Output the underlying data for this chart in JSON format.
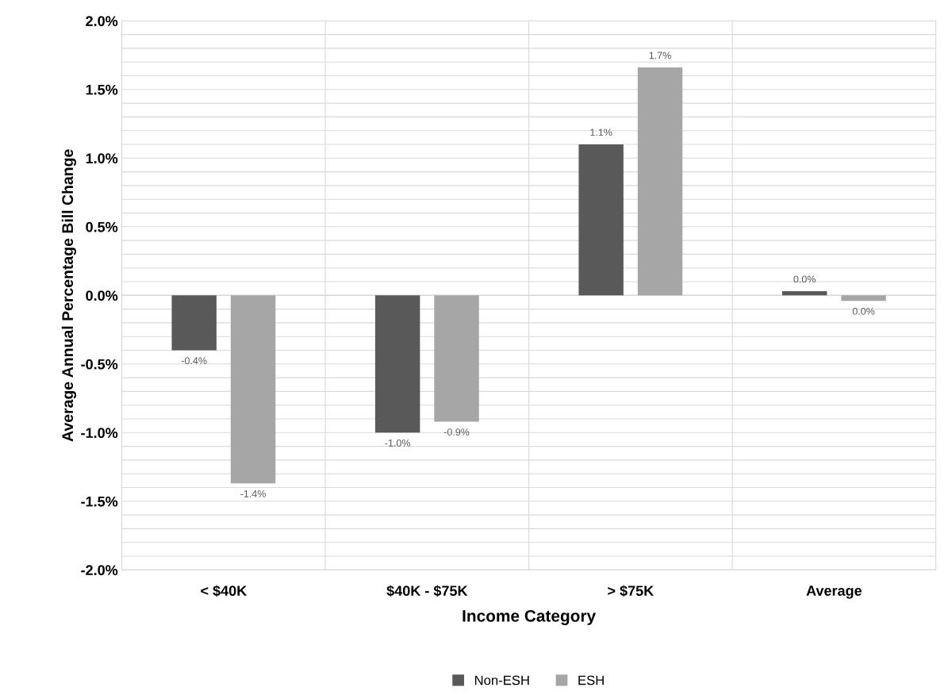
{
  "chart_data": {
    "type": "bar",
    "xlabel": "Income Category",
    "ylabel": "Average Annual Percentage Bill Change",
    "categories": [
      "< $40K",
      "$40K - $75K",
      "> $75K",
      "Average"
    ],
    "series": [
      {
        "name": "Non-ESH",
        "color": "#595959",
        "values": [
          -0.4,
          -1.0,
          1.1,
          0.03
        ],
        "value_labels": [
          "-0.4%",
          "-1.0%",
          "1.1%",
          "0.0%"
        ]
      },
      {
        "name": "ESH",
        "color": "#a6a6a6",
        "values": [
          -1.37,
          -0.92,
          1.66,
          -0.04
        ],
        "value_labels": [
          "-1.4%",
          "-0.9%",
          "1.7%",
          "0.0%"
        ]
      }
    ],
    "ylim": [
      -2.0,
      2.0
    ],
    "yticks": [
      {
        "value": -2.0,
        "label": "-2.0%"
      },
      {
        "value": -1.9,
        "label": null
      },
      {
        "value": -1.8,
        "label": null
      },
      {
        "value": -1.7,
        "label": null
      },
      {
        "value": -1.6,
        "label": null
      },
      {
        "value": -1.5,
        "label": "-1.5%"
      },
      {
        "value": -1.4,
        "label": null
      },
      {
        "value": -1.3,
        "label": null
      },
      {
        "value": -1.2,
        "label": null
      },
      {
        "value": -1.1,
        "label": null
      },
      {
        "value": -1.0,
        "label": "-1.0%"
      },
      {
        "value": -0.9,
        "label": null
      },
      {
        "value": -0.8,
        "label": null
      },
      {
        "value": -0.7,
        "label": null
      },
      {
        "value": -0.6,
        "label": null
      },
      {
        "value": -0.5,
        "label": "-0.5%"
      },
      {
        "value": -0.4,
        "label": null
      },
      {
        "value": -0.3,
        "label": null
      },
      {
        "value": -0.2,
        "label": null
      },
      {
        "value": -0.1,
        "label": null
      },
      {
        "value": 0.0,
        "label": "0.0%"
      },
      {
        "value": 0.1,
        "label": null
      },
      {
        "value": 0.2,
        "label": null
      },
      {
        "value": 0.3,
        "label": null
      },
      {
        "value": 0.4,
        "label": null
      },
      {
        "value": 0.5,
        "label": "0.5%"
      },
      {
        "value": 0.6,
        "label": null
      },
      {
        "value": 0.7,
        "label": null
      },
      {
        "value": 0.8,
        "label": null
      },
      {
        "value": 0.9,
        "label": null
      },
      {
        "value": 1.0,
        "label": "1.0%"
      },
      {
        "value": 1.1,
        "label": null
      },
      {
        "value": 1.2,
        "label": null
      },
      {
        "value": 1.3,
        "label": null
      },
      {
        "value": 1.4,
        "label": null
      },
      {
        "value": 1.5,
        "label": "1.5%"
      },
      {
        "value": 1.6,
        "label": null
      },
      {
        "value": 1.7,
        "label": null
      },
      {
        "value": 1.8,
        "label": null
      },
      {
        "value": 1.9,
        "label": null
      },
      {
        "value": 2.0,
        "label": "2.0%"
      }
    ],
    "grid": true,
    "legend": "bottom"
  }
}
